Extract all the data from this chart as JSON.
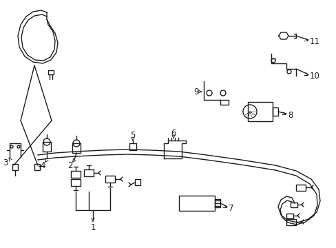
{
  "background_color": "#ffffff",
  "line_color": "#1a1a1a",
  "figsize": [
    4.89,
    3.6
  ],
  "dpi": 100,
  "lw": 1.0
}
